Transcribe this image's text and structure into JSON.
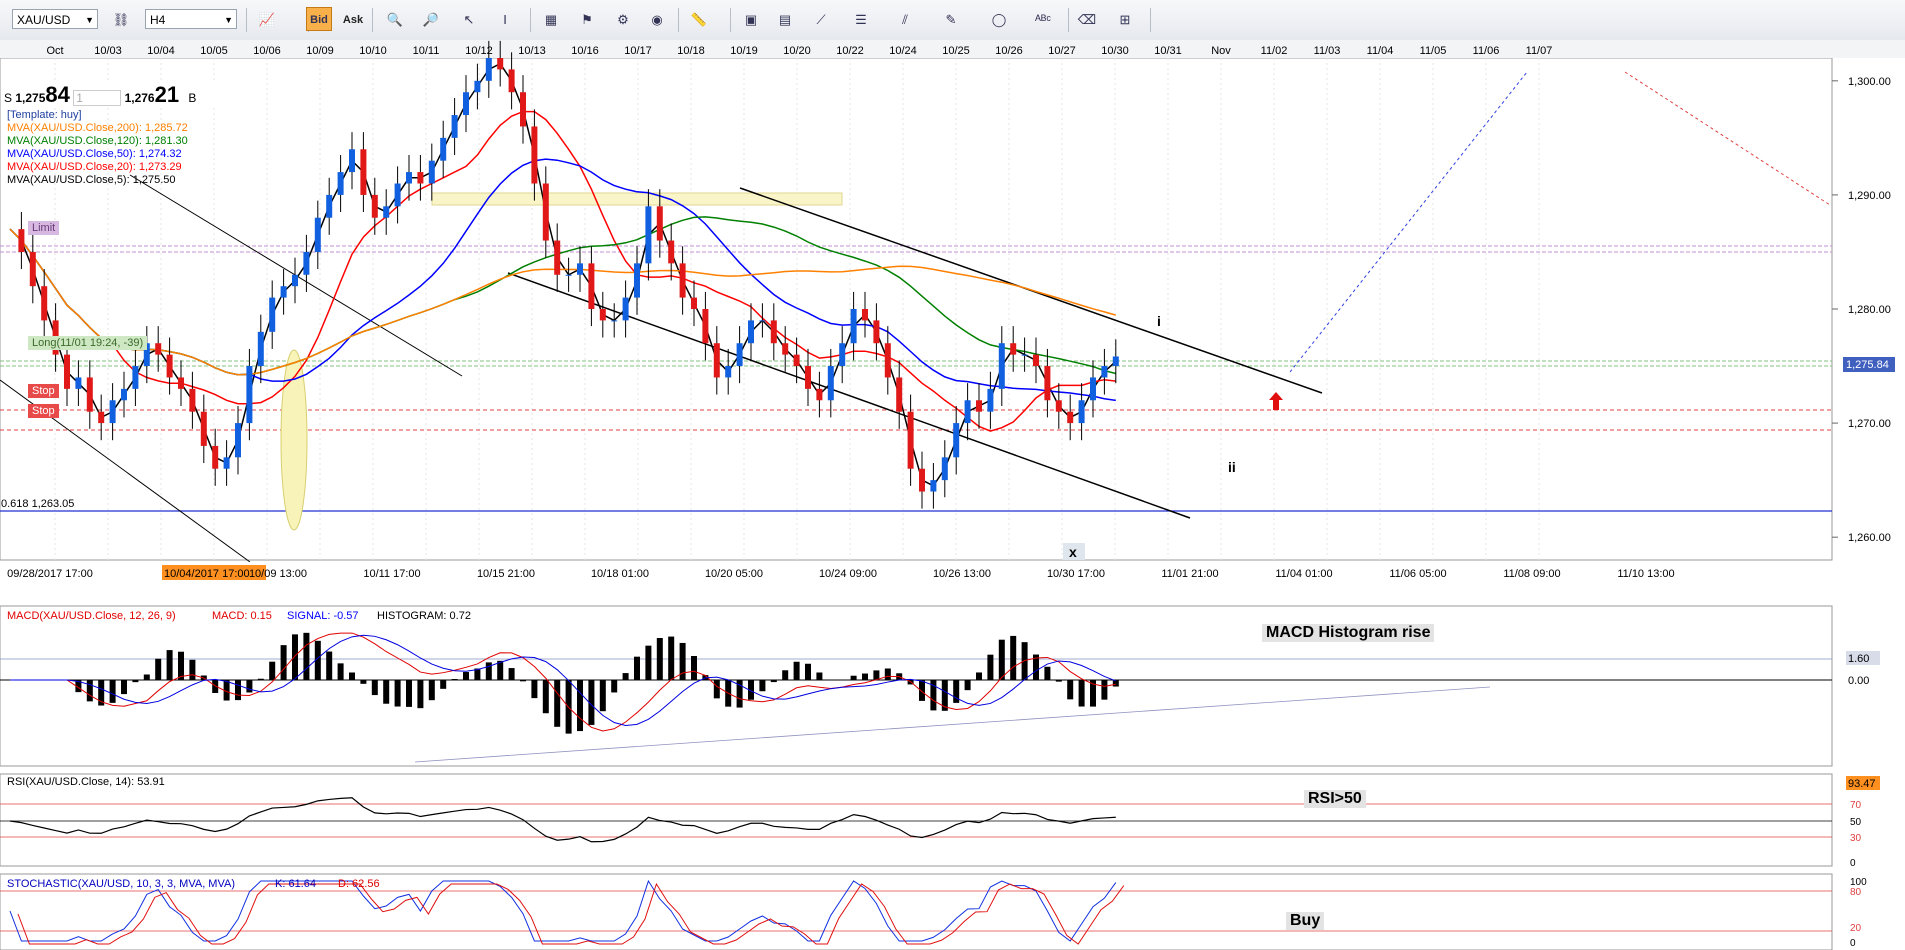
{
  "toolbar": {
    "symbol": "XAU/USD",
    "timeframe": "H4",
    "bid_label": "Bid",
    "ask_label": "Ask",
    "icons": [
      "cursor-icon",
      "crosshair-icon",
      "zoom-icon",
      "chart-type-icon",
      "indicator-icon",
      "draw-line-icon",
      "fibonacci-icon",
      "shape-icon",
      "text-icon",
      "template-icon",
      "eraser-icon",
      "settings-icon"
    ]
  },
  "quote": {
    "sell_label": "S",
    "sell_small": "1,275",
    "sell_big": "84",
    "lot": "1",
    "buy_small": "1,276",
    "buy_big": "21",
    "buy_label": "B"
  },
  "legend": {
    "template": "[Template: huy]",
    "ma200": "MVA(XAU/USD.Close,200): 1,285.72",
    "ma120": "MVA(XAU/USD.Close,120): 1,281.30",
    "ma50": "MVA(XAU/USD.Close,50): 1,274.32",
    "ma20": "MVA(XAU/USD.Close,20): 1,273.29",
    "ma5": "MVA(XAU/USD.Close,5): 1,275.50",
    "colors": {
      "ma200": "#ff8000",
      "ma120": "#008000",
      "ma50": "#0000ff",
      "ma20": "#ff0000",
      "ma5": "#000000"
    }
  },
  "orders": {
    "limit": "Limit",
    "long": "Long(11/01 19:24, -39)",
    "stop1": "Stop",
    "stop2": "Stop",
    "fib": "0.618 1,263.05"
  },
  "wave_labels": {
    "i": "i",
    "ii": "ii"
  },
  "x_marker": "x",
  "annotations": {
    "macd": "MACD Histogram rise",
    "rsi": "RSI>50",
    "stoch": "Buy"
  },
  "indicators": {
    "macd_title": "MACD(XAU/USD.Close, 12, 26, 9)",
    "macd_value": "MACD: 0.15",
    "signal_value": "SIGNAL: -0.57",
    "hist_value": "HISTOGRAM: 0.72",
    "macd_scale": [
      "1.60",
      "0.00"
    ],
    "rsi_title": "RSI(XAU/USD.Close, 14): 53.91",
    "rsi_scale": [
      "93.47",
      "70",
      "50",
      "30",
      "0"
    ],
    "stoch_title": "STOCHASTIC(XAU/USD, 10, 3, 3, MVA, MVA)",
    "stoch_k": "K: 61.64",
    "stoch_d": "D: 62.56",
    "stoch_scale": [
      "100",
      "80",
      "20",
      "0"
    ]
  },
  "chart_data": {
    "type": "candlestick",
    "price_axis": [
      "1,300.00",
      "1,290.00",
      "1,280.00",
      "1,270.00",
      "1,260.00"
    ],
    "price_range": [
      1258,
      1302
    ],
    "current_price": "1,275.84",
    "top_dates": [
      "Oct",
      "10/03",
      "10/04",
      "10/05",
      "10/06",
      "10/09",
      "10/10",
      "10/11",
      "10/12",
      "10/13",
      "10/16",
      "10/17",
      "10/18",
      "10/19",
      "10/20",
      "10/22",
      "10/24",
      "10/25",
      "10/26",
      "10/27",
      "10/30",
      "10/31",
      "Nov",
      "11/02",
      "11/03",
      "11/04",
      "11/05",
      "11/06",
      "11/07"
    ],
    "bottom_dates": [
      "09/28/2017 17:00",
      "10/04/2017 17:00",
      "10/09 13:00",
      "10/11 17:00",
      "10/15 21:00",
      "10/18 01:00",
      "10/20 05:00",
      "10/24 09:00",
      "10/26 13:00",
      "10/30 17:00",
      "11/01 21:00",
      "11/04 01:00",
      "11/06 05:00",
      "11/08 09:00",
      "11/10 13:00"
    ],
    "highlight_date": "10/04/2017 17:00",
    "close_series": [
      1287,
      1285,
      1282,
      1279,
      1276,
      1273,
      1274,
      1271,
      1270,
      1272,
      1273,
      1275,
      1277,
      1276,
      1274,
      1273,
      1271,
      1268,
      1266,
      1267,
      1270,
      1275,
      1278,
      1281,
      1282,
      1283,
      1285,
      1288,
      1290,
      1292,
      1294,
      1290,
      1288,
      1289,
      1291,
      1292,
      1291,
      1293,
      1295,
      1297,
      1299,
      1300,
      1302,
      1301,
      1299,
      1296,
      1291,
      1286,
      1283,
      1283,
      1284,
      1280,
      1279,
      1279,
      1281,
      1284,
      1289,
      1286,
      1284,
      1281,
      1280,
      1277,
      1274,
      1275,
      1277,
      1279,
      1279,
      1277,
      1276,
      1275,
      1273,
      1272,
      1275,
      1277,
      1280,
      1279,
      1277,
      1274,
      1271,
      1266,
      1264,
      1265,
      1267,
      1270,
      1272,
      1271,
      1273,
      1277,
      1276,
      1276,
      1275,
      1272,
      1271,
      1270,
      1272,
      1274,
      1275,
      1275.84
    ]
  }
}
